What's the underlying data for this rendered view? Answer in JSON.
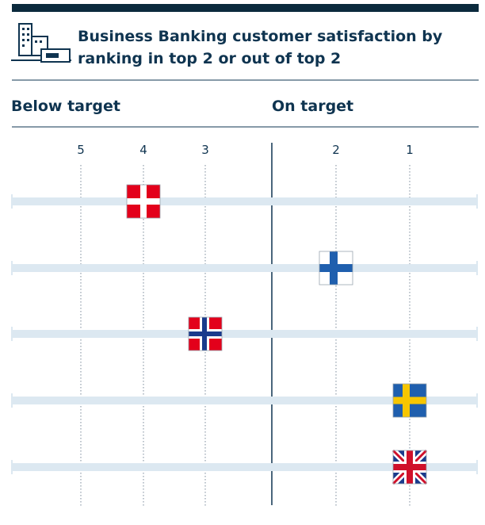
{
  "chart_data": {
    "type": "rank-dot",
    "title": "Business Banking customer satisfaction by ranking in top 2 or out of top 2",
    "zones": [
      "Below target",
      "On target"
    ],
    "xticks": [
      5,
      4,
      3,
      2,
      1
    ],
    "values": [
      4,
      2,
      3,
      1,
      1
    ]
  }
}
